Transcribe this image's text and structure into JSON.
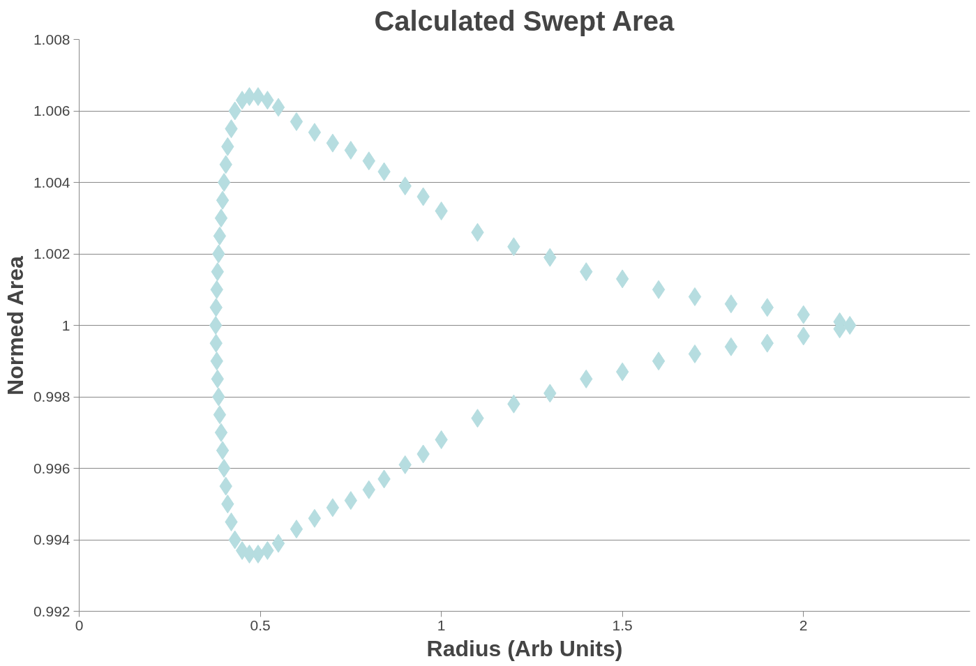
{
  "chart_data": {
    "type": "scatter",
    "title": "Calculated Swept Area",
    "xlabel": "Radius (Arb Units)",
    "ylabel": "Normed Area",
    "marker": "diamond",
    "grid": "y",
    "xlim": [
      0,
      2.46
    ],
    "xticks": [
      0,
      0.5,
      1,
      1.5,
      2
    ],
    "ylim": [
      0.992,
      1.008
    ],
    "yticks": [
      {
        "value": 0.992,
        "label": "0.992"
      },
      {
        "value": 0.994,
        "label": "0.994"
      },
      {
        "value": 0.996,
        "label": "0.996"
      },
      {
        "value": 0.998,
        "label": "0.998"
      },
      1,
      {
        "value": 1.002,
        "label": "1.002"
      },
      {
        "value": 1.004,
        "label": "1.004"
      },
      {
        "value": 1.006,
        "label": "1.006"
      },
      {
        "value": 1.008,
        "label": "1.008"
      }
    ],
    "series": [
      {
        "color": "#b6dde0",
        "x": [
          0.377,
          0.378,
          0.38,
          0.382,
          0.385,
          0.388,
          0.392,
          0.396,
          0.4,
          0.405,
          0.41,
          0.42,
          0.43,
          0.45,
          0.47,
          0.494,
          0.52,
          0.55,
          0.6,
          0.65,
          0.7,
          0.75,
          0.8,
          0.842,
          0.9,
          0.95,
          1.0,
          1.1,
          1.2,
          1.3,
          1.4,
          1.5,
          1.6,
          1.7,
          1.8,
          1.9,
          2.0,
          2.1,
          2.128,
          0.378,
          0.38,
          0.382,
          0.385,
          0.388,
          0.392,
          0.396,
          0.4,
          0.405,
          0.41,
          0.42,
          0.43,
          0.45,
          0.47,
          0.494,
          0.52,
          0.55,
          0.6,
          0.65,
          0.7,
          0.75,
          0.8,
          0.842,
          0.9,
          0.95,
          1.0,
          1.1,
          1.2,
          1.3,
          1.4,
          1.5,
          1.6,
          1.7,
          1.8,
          1.9,
          2.0,
          2.1
        ],
        "values": [
          1.0,
          1.0005,
          1.001,
          1.0015,
          1.002,
          1.0025,
          1.003,
          1.0035,
          1.004,
          1.0045,
          1.005,
          1.0055,
          1.006,
          1.0063,
          1.0064,
          1.0064,
          1.0063,
          1.0061,
          1.0057,
          1.0054,
          1.0051,
          1.0049,
          1.0046,
          1.0043,
          1.0039,
          1.0036,
          1.0032,
          1.0026,
          1.0022,
          1.0019,
          1.0015,
          1.0013,
          1.001,
          1.0008,
          1.0006,
          1.0005,
          1.0003,
          1.0001,
          1.0,
          0.9995,
          0.999,
          0.9985,
          0.998,
          0.9975,
          0.997,
          0.9965,
          0.996,
          0.9955,
          0.995,
          0.9945,
          0.994,
          0.9937,
          0.9936,
          0.9936,
          0.9937,
          0.9939,
          0.9943,
          0.9946,
          0.9949,
          0.9951,
          0.9954,
          0.9957,
          0.9961,
          0.9964,
          0.9968,
          0.9974,
          0.9978,
          0.9981,
          0.9985,
          0.9987,
          0.999,
          0.9992,
          0.9994,
          0.9995,
          0.9997,
          0.9999
        ]
      }
    ]
  }
}
